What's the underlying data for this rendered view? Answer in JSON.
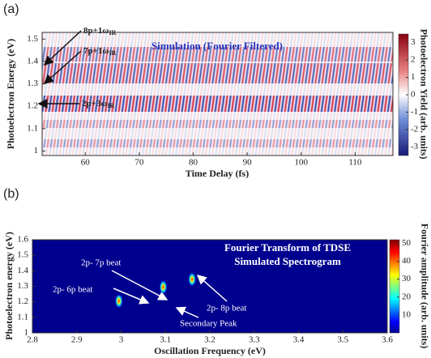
{
  "chart_data": [
    {
      "type": "heatmap",
      "panel_label": "(a)",
      "title": "Simulation (Fourier Filtered)",
      "x_label": "Time Delay (fs)",
      "y_label": "Photoelectron Energy (eV)",
      "xlim": [
        52,
        117
      ],
      "xticks": [
        60,
        70,
        80,
        90,
        100,
        110
      ],
      "ylim": [
        0.98,
        1.53
      ],
      "yticks": [
        1,
        1.1,
        1.2,
        1.3,
        1.4,
        1.5
      ],
      "colorbar_label": "Photoelectron Yield (arb. units)",
      "clim": [
        -3.5,
        3.5
      ],
      "cticks": [
        -3,
        -2,
        -1,
        0,
        1,
        2,
        3
      ],
      "annotations": [
        {
          "text": "8p+1ω",
          "sub": "IR"
        },
        {
          "text": "7p+1ω",
          "sub": "IR"
        },
        {
          "text": "2p+3ω",
          "sub": "IR"
        }
      ]
    },
    {
      "type": "heatmap",
      "panel_label": "(b)",
      "title": [
        "Fourier Transform of TDSE",
        "Simulated Spectrogram"
      ],
      "x_label": "Oscillation Frequency (eV)",
      "y_label": "Photoelectron energy (eV)",
      "xlim": [
        2.8,
        3.6
      ],
      "xticks": [
        2.8,
        2.9,
        3,
        3.1,
        3.2,
        3.3,
        3.4,
        3.5,
        3.6
      ],
      "ylim": [
        1,
        1.6
      ],
      "yticks": [
        1,
        1.1,
        1.2,
        1.3,
        1.4,
        1.5,
        1.6
      ],
      "colorbar_label": "Fourier amplitude (arb. units)",
      "clim": [
        0,
        52
      ],
      "cticks": [
        10,
        20,
        30,
        40,
        50
      ],
      "peaks": {
        "x": [
          2.995,
          3.095,
          3.16
        ],
        "y": [
          1.205,
          1.295,
          1.345
        ]
      },
      "annotations": [
        "2p- 6p beat",
        "2p- 7p beat",
        "2p- 8p beat",
        "Secondary Peak"
      ]
    }
  ]
}
